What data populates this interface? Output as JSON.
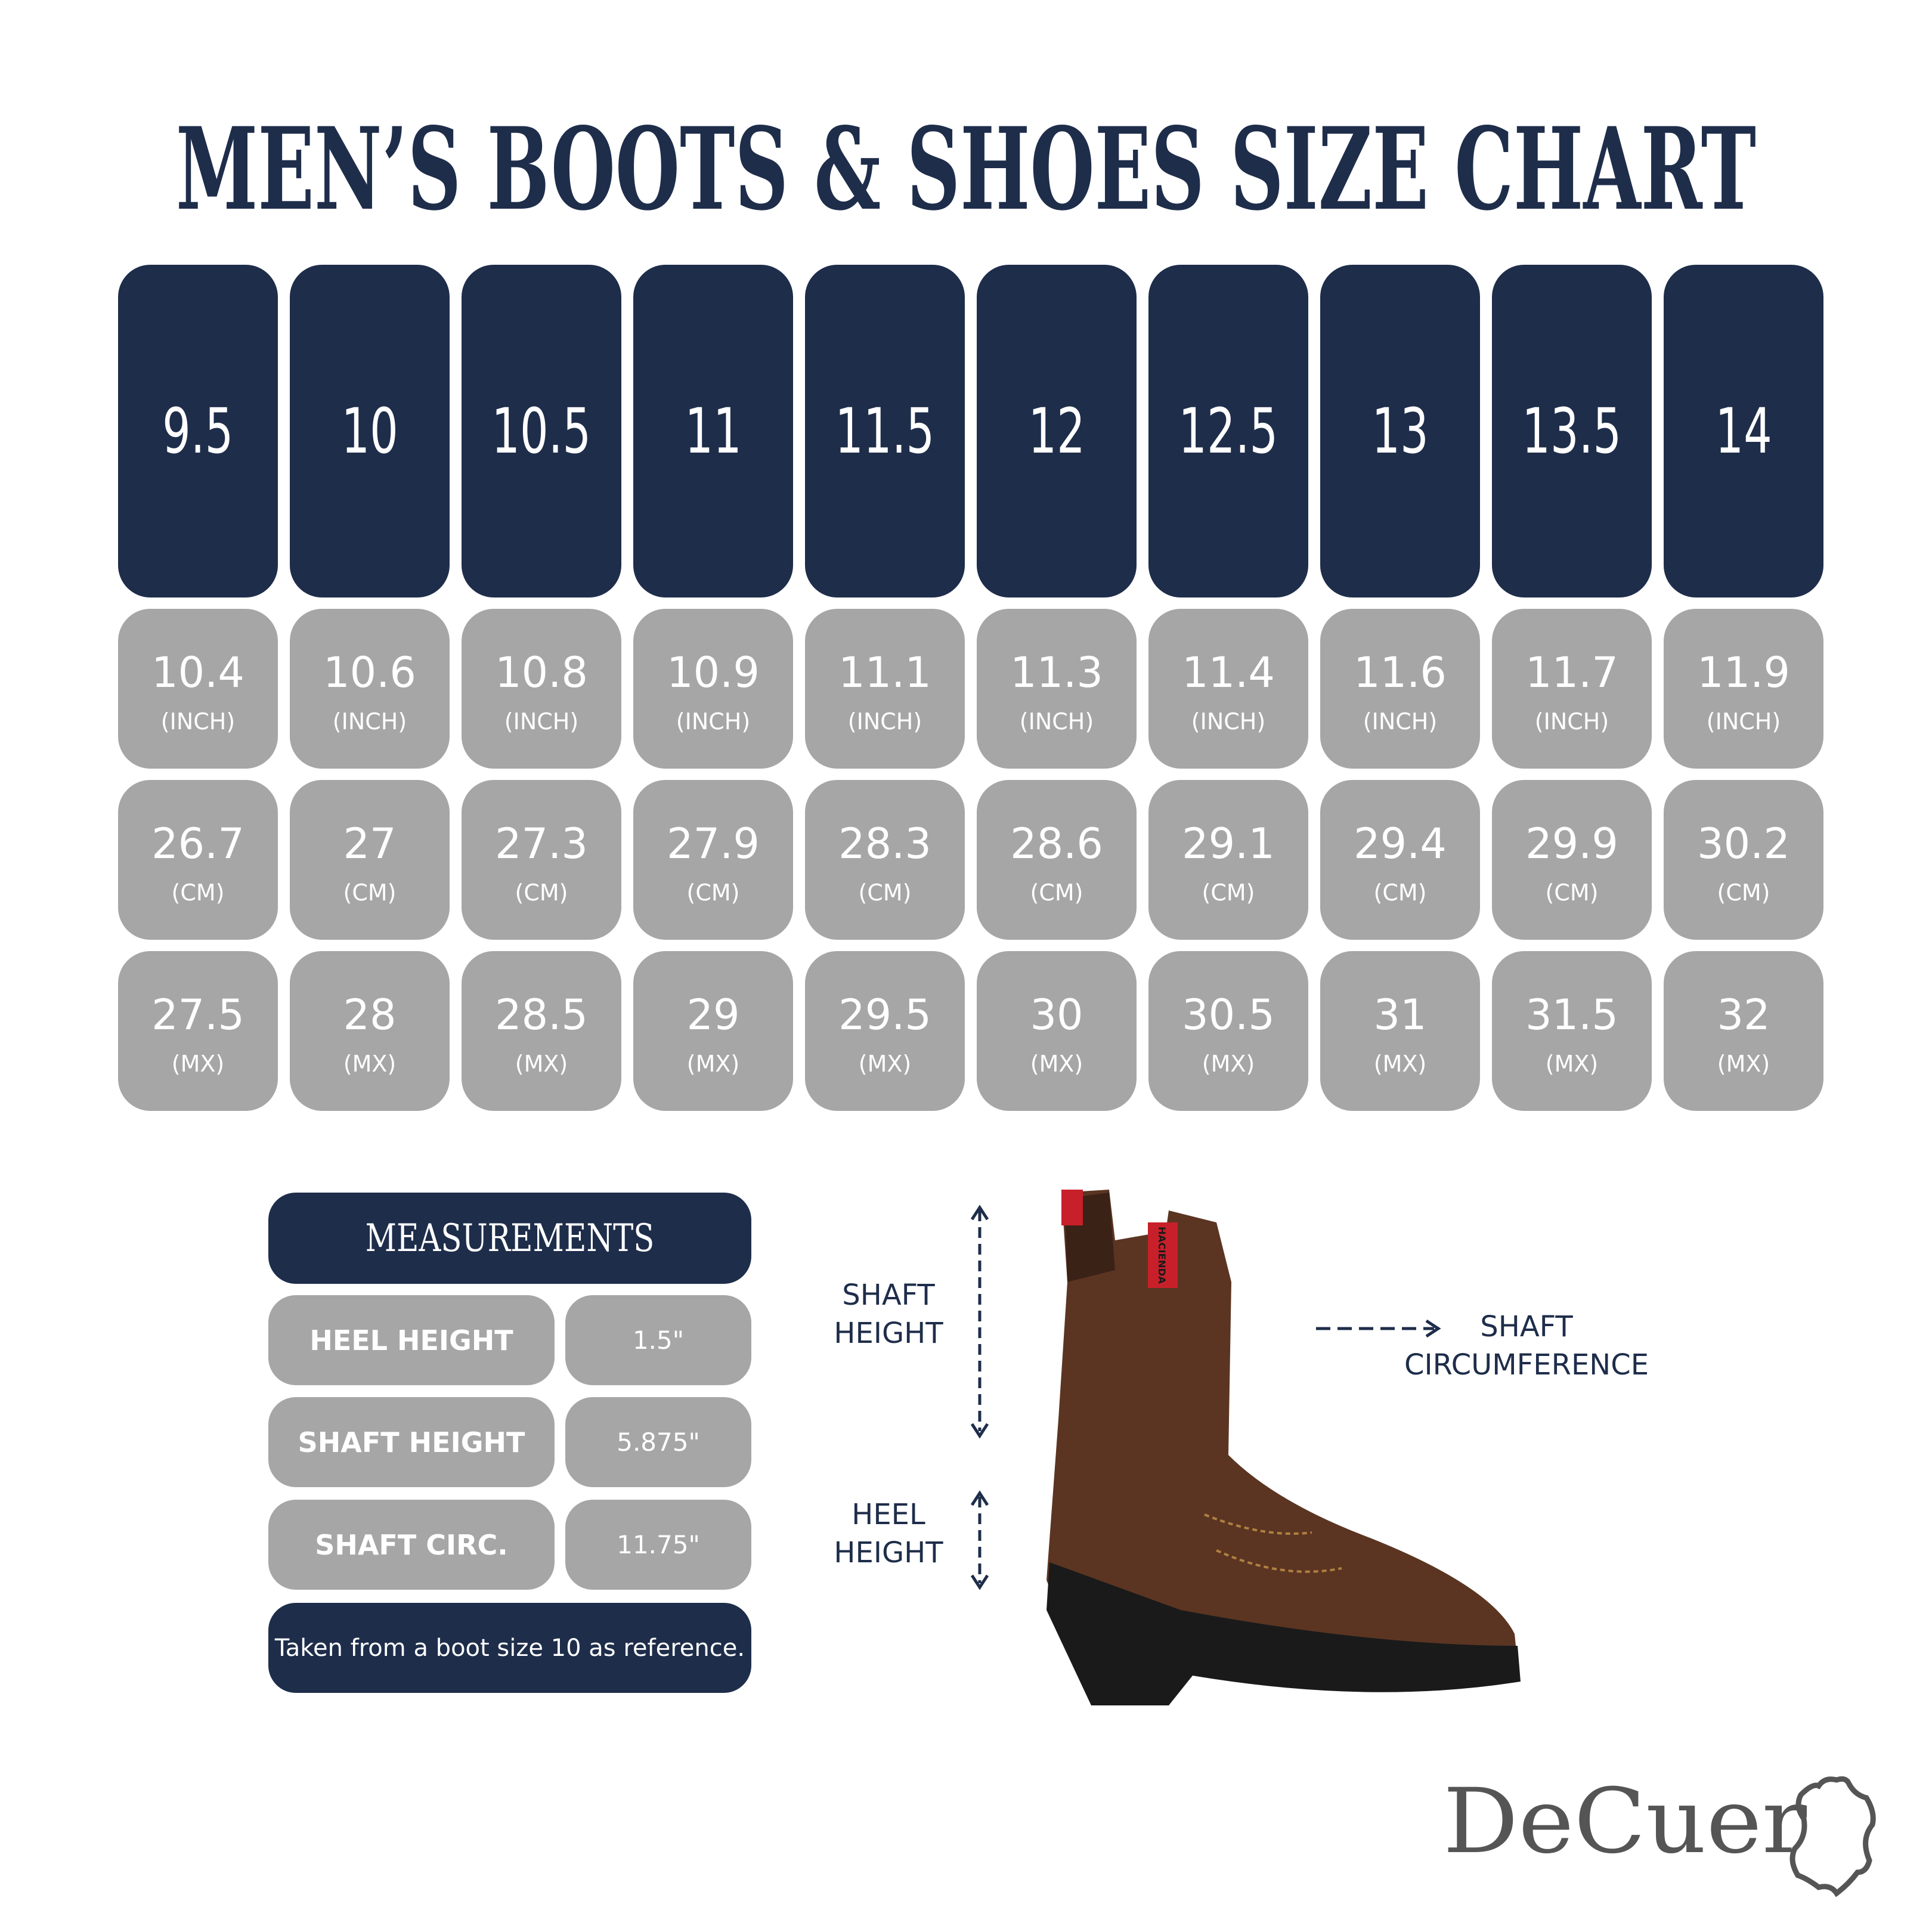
{
  "title": "MEN’S BOOTS & SHOES SIZE CHART",
  "sizes": [
    "9.5",
    "10",
    "10.5",
    "11",
    "11.5",
    "12",
    "12.5",
    "13",
    "13.5",
    "14"
  ],
  "rows": [
    {
      "unit": "(INCH)",
      "values": [
        "10.4",
        "10.6",
        "10.8",
        "10.9",
        "11.1",
        "11.3",
        "11.4",
        "11.6",
        "11.7",
        "11.9"
      ]
    },
    {
      "unit": "(CM)",
      "values": [
        "26.7",
        "27",
        "27.3",
        "27.9",
        "28.3",
        "28.6",
        "29.1",
        "29.4",
        "29.9",
        "30.2"
      ]
    },
    {
      "unit": "(MX)",
      "values": [
        "27.5",
        "28",
        "28.5",
        "29",
        "29.5",
        "30",
        "30.5",
        "31",
        "31.5",
        "32"
      ]
    }
  ],
  "measurements": {
    "heading": "MEASUREMENTS",
    "items": [
      {
        "label": "HEEL HEIGHT",
        "value": "1.5\""
      },
      {
        "label": "SHAFT HEIGHT",
        "value": "5.875\""
      },
      {
        "label": "SHAFT CIRC.",
        "value": "11.75\""
      }
    ],
    "note": "Taken from a boot size 10 as reference."
  },
  "diagram": {
    "shaft_height": [
      "SHAFT",
      "HEIGHT"
    ],
    "heel_height": [
      "HEEL",
      "HEIGHT"
    ],
    "shaft_circumference": [
      "SHAFT",
      "CIRCUMFERENCE"
    ],
    "boot_tag": "HACIENDA"
  },
  "logo": {
    "text": "DeCuer",
    "icon": "leather-hide-icon"
  },
  "colors": {
    "navy": "#1e2d4a",
    "gray": "#a6a6a6",
    "logo": "#555555"
  }
}
